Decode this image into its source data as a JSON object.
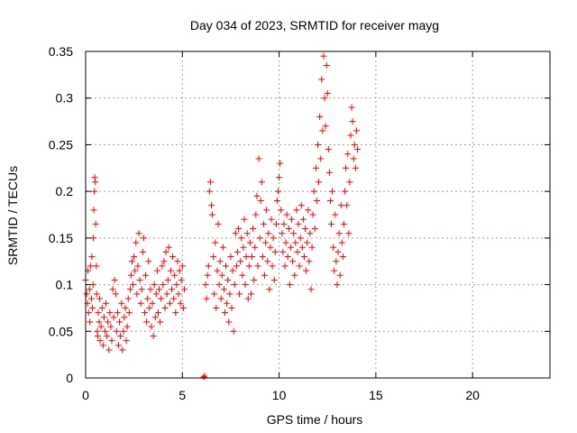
{
  "chart_data": {
    "type": "scatter",
    "title": "Day 034 of 2023, SRMTID for receiver mayg",
    "xlabel": "GPS time / hours",
    "ylabel": "SRMTID / TECUs",
    "xlim": [
      0,
      24
    ],
    "ylim": [
      0,
      0.35
    ],
    "xticks": [
      0,
      5,
      10,
      15,
      20
    ],
    "yticks": [
      0,
      0.05,
      0.1,
      0.15,
      0.2,
      0.25,
      0.3,
      0.35
    ],
    "xtick_labels": [
      "0",
      "5",
      "10",
      "15",
      "20"
    ],
    "ytick_labels": [
      "0",
      "0.05",
      "0.1",
      "0.15",
      "0.2",
      "0.25",
      "0.3",
      "0.35"
    ],
    "grid": true,
    "marker": "+",
    "color": "#ff0000",
    "series": [
      {
        "name": "SRMTID",
        "points": [
          [
            0.0,
            0.105
          ],
          [
            0.05,
            0.09
          ],
          [
            0.1,
            0.08
          ],
          [
            0.12,
            0.115
          ],
          [
            0.15,
            0.07
          ],
          [
            0.2,
            0.095
          ],
          [
            0.22,
            0.06
          ],
          [
            0.25,
            0.12
          ],
          [
            0.3,
            0.085
          ],
          [
            0.32,
            0.13
          ],
          [
            0.35,
            0.075
          ],
          [
            0.38,
            0.1
          ],
          [
            0.4,
            0.15
          ],
          [
            0.42,
            0.18
          ],
          [
            0.45,
            0.2
          ],
          [
            0.47,
            0.215
          ],
          [
            0.5,
            0.21
          ],
          [
            0.52,
            0.165
          ],
          [
            0.55,
            0.12
          ],
          [
            0.57,
            0.09
          ],
          [
            0.6,
            0.05
          ],
          [
            0.62,
            0.045
          ],
          [
            0.65,
            0.07
          ],
          [
            0.7,
            0.06
          ],
          [
            0.72,
            0.085
          ],
          [
            0.75,
            0.04
          ],
          [
            0.8,
            0.055
          ],
          [
            0.85,
            0.075
          ],
          [
            0.9,
            0.035
          ],
          [
            0.95,
            0.065
          ],
          [
            1.0,
            0.05
          ],
          [
            1.05,
            0.08
          ],
          [
            1.1,
            0.045
          ],
          [
            1.15,
            0.06
          ],
          [
            1.2,
            0.03
          ],
          [
            1.25,
            0.07
          ],
          [
            1.3,
            0.055
          ],
          [
            1.35,
            0.04
          ],
          [
            1.4,
            0.095
          ],
          [
            1.45,
            0.065
          ],
          [
            1.5,
            0.105
          ],
          [
            1.55,
            0.09
          ],
          [
            1.6,
            0.05
          ],
          [
            1.65,
            0.07
          ],
          [
            1.7,
            0.035
          ],
          [
            1.75,
            0.06
          ],
          [
            1.8,
            0.045
          ],
          [
            1.85,
            0.08
          ],
          [
            1.9,
            0.03
          ],
          [
            1.95,
            0.05
          ],
          [
            2.0,
            0.065
          ],
          [
            2.05,
            0.075
          ],
          [
            2.1,
            0.04
          ],
          [
            2.15,
            0.055
          ],
          [
            2.2,
            0.085
          ],
          [
            2.25,
            0.07
          ],
          [
            2.3,
            0.095
          ],
          [
            2.35,
            0.11
          ],
          [
            2.4,
            0.125
          ],
          [
            2.45,
            0.1
          ],
          [
            2.5,
            0.13
          ],
          [
            2.55,
            0.115
          ],
          [
            2.6,
            0.145
          ],
          [
            2.65,
            0.09
          ],
          [
            2.7,
            0.12
          ],
          [
            2.75,
            0.155
          ],
          [
            2.8,
            0.105
          ],
          [
            2.85,
            0.08
          ],
          [
            2.9,
            0.095
          ],
          [
            2.95,
            0.135
          ],
          [
            3.0,
            0.15
          ],
          [
            3.05,
            0.07
          ],
          [
            3.1,
            0.11
          ],
          [
            3.15,
            0.06
          ],
          [
            3.2,
            0.085
          ],
          [
            3.25,
            0.125
          ],
          [
            3.3,
            0.075
          ],
          [
            3.35,
            0.095
          ],
          [
            3.4,
            0.055
          ],
          [
            3.45,
            0.08
          ],
          [
            3.5,
            0.045
          ],
          [
            3.55,
            0.1
          ],
          [
            3.6,
            0.065
          ],
          [
            3.65,
            0.09
          ],
          [
            3.7,
            0.115
          ],
          [
            3.75,
            0.07
          ],
          [
            3.8,
            0.095
          ],
          [
            3.85,
            0.06
          ],
          [
            3.9,
            0.085
          ],
          [
            3.95,
            0.12
          ],
          [
            4.0,
            0.1
          ],
          [
            4.05,
            0.125
          ],
          [
            4.1,
            0.075
          ],
          [
            4.15,
            0.135
          ],
          [
            4.2,
            0.09
          ],
          [
            4.25,
            0.105
          ],
          [
            4.3,
            0.14
          ],
          [
            4.35,
            0.08
          ],
          [
            4.4,
            0.115
          ],
          [
            4.45,
            0.095
          ],
          [
            4.5,
            0.13
          ],
          [
            4.55,
            0.085
          ],
          [
            4.6,
            0.11
          ],
          [
            4.65,
            0.07
          ],
          [
            4.7,
            0.1
          ],
          [
            4.75,
            0.125
          ],
          [
            4.8,
            0.09
          ],
          [
            4.85,
            0.115
          ],
          [
            4.9,
            0.08
          ],
          [
            4.95,
            0.105
          ],
          [
            5.0,
            0.12
          ],
          [
            5.05,
            0.075
          ],
          [
            5.1,
            0.095
          ],
          [
            6.1,
            0.001
          ],
          [
            6.15,
            0.002
          ],
          [
            6.2,
            0.1
          ],
          [
            6.25,
            0.085
          ],
          [
            6.3,
            0.11
          ],
          [
            6.35,
            0.12
          ],
          [
            6.4,
            0.2
          ],
          [
            6.45,
            0.21
          ],
          [
            6.5,
            0.185
          ],
          [
            6.55,
            0.175
          ],
          [
            6.6,
            0.13
          ],
          [
            6.65,
            0.09
          ],
          [
            6.7,
            0.145
          ],
          [
            6.75,
            0.075
          ],
          [
            6.8,
            0.115
          ],
          [
            6.85,
            0.165
          ],
          [
            6.9,
            0.1
          ],
          [
            6.95,
            0.125
          ],
          [
            7.0,
            0.085
          ],
          [
            7.05,
            0.11
          ],
          [
            7.1,
            0.14
          ],
          [
            7.15,
            0.095
          ],
          [
            7.2,
            0.07
          ],
          [
            7.25,
            0.12
          ],
          [
            7.3,
            0.08
          ],
          [
            7.35,
            0.105
          ],
          [
            7.4,
            0.06
          ],
          [
            7.45,
            0.09
          ],
          [
            7.5,
            0.13
          ],
          [
            7.55,
            0.075
          ],
          [
            7.6,
            0.115
          ],
          [
            7.65,
            0.05
          ],
          [
            7.7,
            0.1
          ],
          [
            7.75,
            0.155
          ],
          [
            7.8,
            0.12
          ],
          [
            7.85,
            0.135
          ],
          [
            7.9,
            0.16
          ],
          [
            7.95,
            0.09
          ],
          [
            8.0,
            0.125
          ],
          [
            8.05,
            0.15
          ],
          [
            8.1,
            0.11
          ],
          [
            8.15,
            0.14
          ],
          [
            8.2,
            0.17
          ],
          [
            8.25,
            0.1
          ],
          [
            8.3,
            0.13
          ],
          [
            8.35,
            0.155
          ],
          [
            8.4,
            0.085
          ],
          [
            8.45,
            0.12
          ],
          [
            8.5,
            0.145
          ],
          [
            8.55,
            0.09
          ],
          [
            8.6,
            0.13
          ],
          [
            8.65,
            0.16
          ],
          [
            8.7,
            0.105
          ],
          [
            8.75,
            0.14
          ],
          [
            8.8,
            0.175
          ],
          [
            8.85,
            0.195
          ],
          [
            8.9,
            0.12
          ],
          [
            8.95,
            0.235
          ],
          [
            9.0,
            0.15
          ],
          [
            9.05,
            0.19
          ],
          [
            9.1,
            0.21
          ],
          [
            9.15,
            0.13
          ],
          [
            9.2,
            0.165
          ],
          [
            9.25,
            0.11
          ],
          [
            9.3,
            0.145
          ],
          [
            9.35,
            0.18
          ],
          [
            9.4,
            0.125
          ],
          [
            9.45,
            0.155
          ],
          [
            9.5,
            0.095
          ],
          [
            9.55,
            0.14
          ],
          [
            9.6,
            0.17
          ],
          [
            9.65,
            0.12
          ],
          [
            9.7,
            0.15
          ],
          [
            9.75,
            0.105
          ],
          [
            9.8,
            0.135
          ],
          [
            9.85,
            0.165
          ],
          [
            9.9,
            0.19
          ],
          [
            9.95,
            0.2
          ],
          [
            10.0,
            0.215
          ],
          [
            10.05,
            0.23
          ],
          [
            10.1,
            0.18
          ],
          [
            10.15,
            0.155
          ],
          [
            10.2,
            0.135
          ],
          [
            10.25,
            0.165
          ],
          [
            10.3,
            0.12
          ],
          [
            10.35,
            0.145
          ],
          [
            10.4,
            0.175
          ],
          [
            10.45,
            0.13
          ],
          [
            10.5,
            0.16
          ],
          [
            10.55,
            0.1
          ],
          [
            10.6,
            0.14
          ],
          [
            10.65,
            0.17
          ],
          [
            10.7,
            0.125
          ],
          [
            10.75,
            0.155
          ],
          [
            10.8,
            0.11
          ],
          [
            10.85,
            0.145
          ],
          [
            10.9,
            0.18
          ],
          [
            10.95,
            0.135
          ],
          [
            11.0,
            0.165
          ],
          [
            11.05,
            0.12
          ],
          [
            11.1,
            0.15
          ],
          [
            11.15,
            0.185
          ],
          [
            11.2,
            0.14
          ],
          [
            11.25,
            0.17
          ],
          [
            11.3,
            0.13
          ],
          [
            11.35,
            0.16
          ],
          [
            11.4,
            0.115
          ],
          [
            11.45,
            0.145
          ],
          [
            11.5,
            0.18
          ],
          [
            11.55,
            0.125
          ],
          [
            11.6,
            0.155
          ],
          [
            11.65,
            0.095
          ],
          [
            11.7,
            0.14
          ],
          [
            11.75,
            0.175
          ],
          [
            11.8,
            0.2
          ],
          [
            11.85,
            0.16
          ],
          [
            11.9,
            0.225
          ],
          [
            11.95,
            0.19
          ],
          [
            12.0,
            0.25
          ],
          [
            12.05,
            0.21
          ],
          [
            12.1,
            0.28
          ],
          [
            12.15,
            0.235
          ],
          [
            12.2,
            0.32
          ],
          [
            12.25,
            0.265
          ],
          [
            12.3,
            0.345
          ],
          [
            12.35,
            0.3
          ],
          [
            12.4,
            0.27
          ],
          [
            12.45,
            0.335
          ],
          [
            12.5,
            0.305
          ],
          [
            12.55,
            0.245
          ],
          [
            12.6,
            0.22
          ],
          [
            12.65,
            0.19
          ],
          [
            12.7,
            0.165
          ],
          [
            12.75,
            0.2
          ],
          [
            12.8,
            0.14
          ],
          [
            12.85,
            0.115
          ],
          [
            12.9,
            0.175
          ],
          [
            12.95,
            0.125
          ],
          [
            13.0,
            0.1
          ],
          [
            13.05,
            0.135
          ],
          [
            13.1,
            0.155
          ],
          [
            13.15,
            0.11
          ],
          [
            13.2,
            0.185
          ],
          [
            13.25,
            0.145
          ],
          [
            13.3,
            0.13
          ],
          [
            13.35,
            0.165
          ],
          [
            13.4,
            0.2
          ],
          [
            13.45,
            0.225
          ],
          [
            13.5,
            0.185
          ],
          [
            13.55,
            0.24
          ],
          [
            13.6,
            0.155
          ],
          [
            13.65,
            0.21
          ],
          [
            13.7,
            0.26
          ],
          [
            13.75,
            0.29
          ],
          [
            13.8,
            0.275
          ],
          [
            13.85,
            0.235
          ],
          [
            13.9,
            0.25
          ],
          [
            13.95,
            0.225
          ],
          [
            14.0,
            0.265
          ],
          [
            14.05,
            0.245
          ]
        ]
      }
    ]
  }
}
